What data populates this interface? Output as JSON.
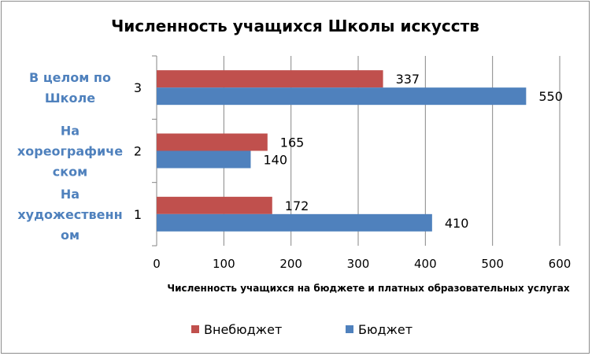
{
  "chart_data": {
    "type": "bar",
    "orientation": "horizontal",
    "title": "Численность учащихся Школы искусств",
    "xlabel": "Численность учащихся на бюджете  и платных образовательных услугах",
    "ylabel": "",
    "xlim": [
      0,
      600
    ],
    "xticks": [
      "0",
      "100",
      "200",
      "300",
      "400",
      "500",
      "600"
    ],
    "categories": [
      "1",
      "2",
      "3"
    ],
    "category_labels": [
      [
        "На",
        "художественн",
        "ом"
      ],
      [
        "На",
        "хореографиче",
        "ском"
      ],
      [
        "В целом по",
        "Школе"
      ]
    ],
    "series": [
      {
        "name": "Внебюджет",
        "values": [
          172,
          165,
          337
        ],
        "color": "#c0504d"
      },
      {
        "name": "Бюджет",
        "values": [
          410,
          140,
          550
        ],
        "color": "#4f81bd"
      }
    ],
    "grid": true,
    "legend": "bottom"
  }
}
